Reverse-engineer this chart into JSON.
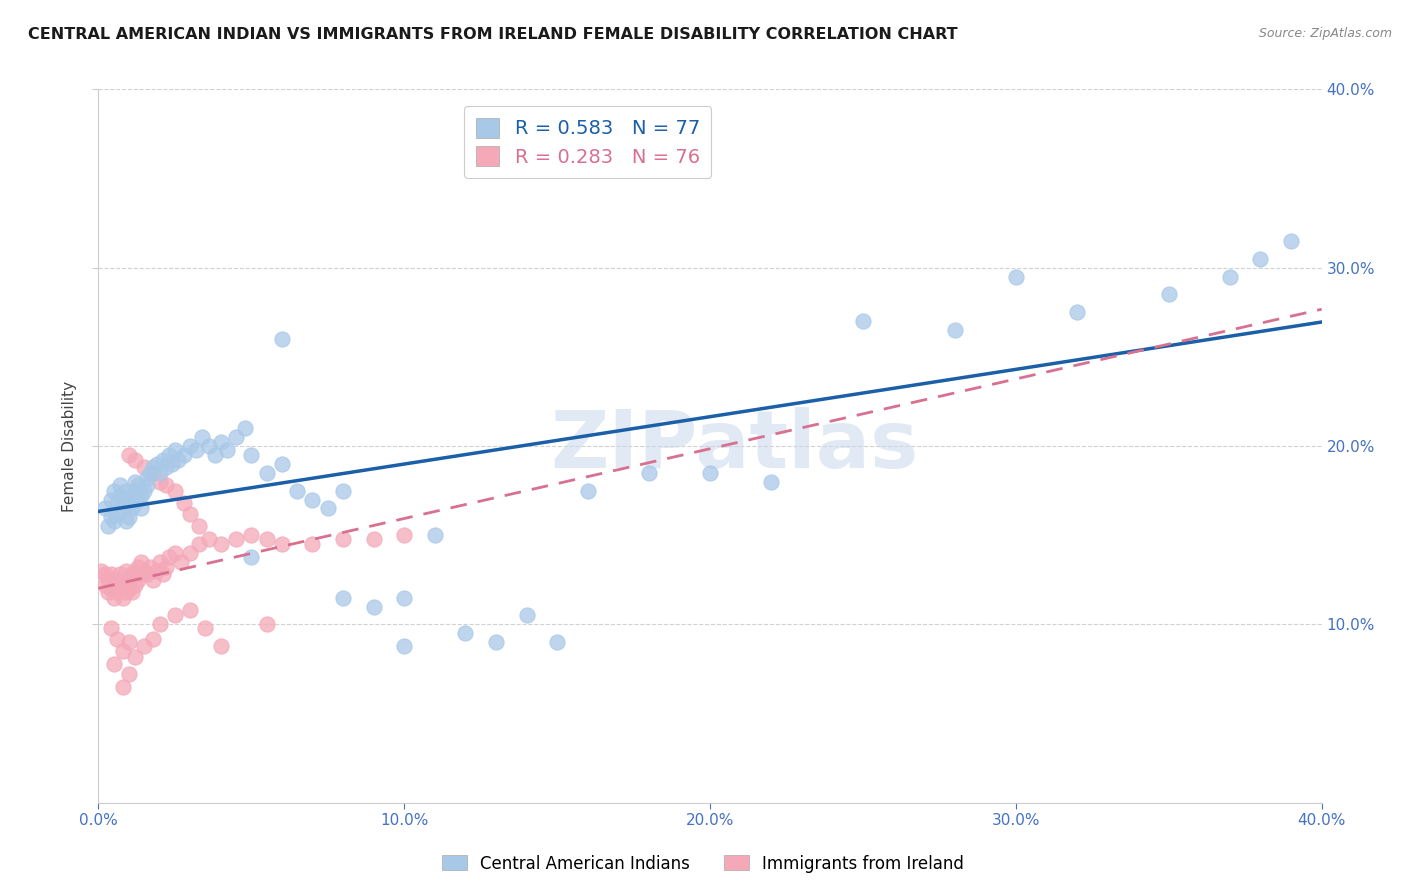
{
  "title": "CENTRAL AMERICAN INDIAN VS IMMIGRANTS FROM IRELAND FEMALE DISABILITY CORRELATION CHART",
  "source": "Source: ZipAtlas.com",
  "ylabel": "Female Disability",
  "xlim": [
    0.0,
    0.4
  ],
  "ylim": [
    0.0,
    0.4
  ],
  "xticks": [
    0.0,
    0.1,
    0.2,
    0.3,
    0.4
  ],
  "yticks": [
    0.1,
    0.2,
    0.3,
    0.4
  ],
  "xticklabels": [
    "0.0%",
    "10.0%",
    "20.0%",
    "30.0%",
    "40.0%"
  ],
  "yticklabels_right": [
    "10.0%",
    "20.0%",
    "30.0%",
    "40.0%"
  ],
  "grid_color": "#cccccc",
  "background_color": "#ffffff",
  "watermark": "ZIPatlas",
  "legend1_label": "Central American Indians",
  "legend2_label": "Immigrants from Ireland",
  "series1_color": "#a8c8e8",
  "series2_color": "#f4a8b8",
  "series1_line_color": "#1a5fa8",
  "series2_line_color": "#d87090",
  "R1": 0.583,
  "N1": 77,
  "R2": 0.283,
  "N2": 76,
  "series1_x": [
    0.002,
    0.003,
    0.004,
    0.004,
    0.005,
    0.005,
    0.006,
    0.006,
    0.007,
    0.007,
    0.008,
    0.008,
    0.009,
    0.009,
    0.01,
    0.01,
    0.011,
    0.011,
    0.012,
    0.012,
    0.013,
    0.013,
    0.014,
    0.014,
    0.015,
    0.016,
    0.016,
    0.017,
    0.018,
    0.019,
    0.02,
    0.021,
    0.022,
    0.023,
    0.024,
    0.025,
    0.026,
    0.028,
    0.03,
    0.032,
    0.034,
    0.036,
    0.038,
    0.04,
    0.042,
    0.045,
    0.048,
    0.05,
    0.055,
    0.06,
    0.065,
    0.07,
    0.075,
    0.08,
    0.09,
    0.1,
    0.11,
    0.12,
    0.13,
    0.14,
    0.15,
    0.16,
    0.18,
    0.2,
    0.22,
    0.25,
    0.28,
    0.3,
    0.32,
    0.35,
    0.37,
    0.38,
    0.39,
    0.05,
    0.06,
    0.08,
    0.1
  ],
  "series1_y": [
    0.165,
    0.155,
    0.16,
    0.17,
    0.158,
    0.175,
    0.162,
    0.168,
    0.172,
    0.178,
    0.165,
    0.17,
    0.158,
    0.175,
    0.16,
    0.168,
    0.172,
    0.165,
    0.175,
    0.18,
    0.17,
    0.178,
    0.165,
    0.172,
    0.175,
    0.178,
    0.182,
    0.185,
    0.188,
    0.19,
    0.185,
    0.192,
    0.188,
    0.195,
    0.19,
    0.198,
    0.192,
    0.195,
    0.2,
    0.198,
    0.205,
    0.2,
    0.195,
    0.202,
    0.198,
    0.205,
    0.21,
    0.195,
    0.185,
    0.19,
    0.175,
    0.17,
    0.165,
    0.115,
    0.11,
    0.115,
    0.15,
    0.095,
    0.09,
    0.105,
    0.09,
    0.175,
    0.185,
    0.185,
    0.18,
    0.27,
    0.265,
    0.295,
    0.275,
    0.285,
    0.295,
    0.305,
    0.315,
    0.138,
    0.26,
    0.175,
    0.088
  ],
  "series2_x": [
    0.001,
    0.002,
    0.002,
    0.003,
    0.003,
    0.004,
    0.004,
    0.005,
    0.005,
    0.006,
    0.006,
    0.007,
    0.007,
    0.008,
    0.008,
    0.009,
    0.009,
    0.01,
    0.01,
    0.011,
    0.011,
    0.012,
    0.012,
    0.013,
    0.013,
    0.014,
    0.014,
    0.015,
    0.016,
    0.017,
    0.018,
    0.019,
    0.02,
    0.021,
    0.022,
    0.023,
    0.025,
    0.027,
    0.03,
    0.033,
    0.036,
    0.04,
    0.045,
    0.05,
    0.055,
    0.06,
    0.07,
    0.08,
    0.09,
    0.1,
    0.01,
    0.012,
    0.015,
    0.018,
    0.02,
    0.022,
    0.025,
    0.028,
    0.03,
    0.033,
    0.004,
    0.006,
    0.008,
    0.01,
    0.012,
    0.015,
    0.018,
    0.02,
    0.025,
    0.03,
    0.005,
    0.008,
    0.01,
    0.035,
    0.04,
    0.055
  ],
  "series2_y": [
    0.13,
    0.122,
    0.128,
    0.118,
    0.125,
    0.12,
    0.128,
    0.115,
    0.122,
    0.118,
    0.125,
    0.12,
    0.128,
    0.115,
    0.122,
    0.118,
    0.13,
    0.12,
    0.125,
    0.118,
    0.128,
    0.122,
    0.13,
    0.125,
    0.132,
    0.128,
    0.135,
    0.13,
    0.128,
    0.132,
    0.125,
    0.13,
    0.135,
    0.128,
    0.132,
    0.138,
    0.14,
    0.135,
    0.14,
    0.145,
    0.148,
    0.145,
    0.148,
    0.15,
    0.148,
    0.145,
    0.145,
    0.148,
    0.148,
    0.15,
    0.195,
    0.192,
    0.188,
    0.185,
    0.18,
    0.178,
    0.175,
    0.168,
    0.162,
    0.155,
    0.098,
    0.092,
    0.085,
    0.09,
    0.082,
    0.088,
    0.092,
    0.1,
    0.105,
    0.108,
    0.078,
    0.065,
    0.072,
    0.098,
    0.088,
    0.1
  ]
}
